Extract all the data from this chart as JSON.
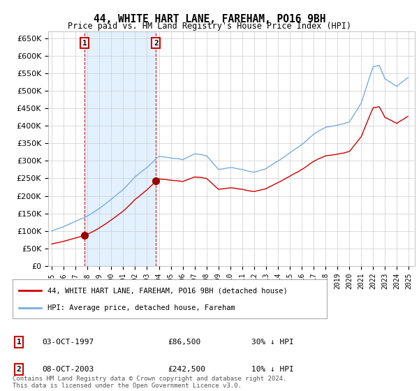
{
  "title": "44, WHITE HART LANE, FAREHAM, PO16 9BH",
  "subtitle": "Price paid vs. HM Land Registry's House Price Index (HPI)",
  "ylim": [
    0,
    670000
  ],
  "yticks": [
    0,
    50000,
    100000,
    150000,
    200000,
    250000,
    300000,
    350000,
    400000,
    450000,
    500000,
    550000,
    600000,
    650000
  ],
  "xlim_start": 1994.7,
  "xlim_end": 2025.5,
  "hpi_color": "#7aacdc",
  "hpi_fill_color": "#ddeeff",
  "price_color": "#cc0000",
  "marker_color": "#990000",
  "grid_color": "#cccccc",
  "background_color": "#ffffff",
  "legend_entry1": "44, WHITE HART LANE, FAREHAM, PO16 9BH (detached house)",
  "legend_entry2": "HPI: Average price, detached house, Fareham",
  "transaction1_date": "03-OCT-1997",
  "transaction1_price": "£86,500",
  "transaction1_hpi": "30% ↓ HPI",
  "transaction2_date": "08-OCT-2003",
  "transaction2_price": "£242,500",
  "transaction2_hpi": "10% ↓ HPI",
  "footer": "Contains HM Land Registry data © Crown copyright and database right 2024.\nThis data is licensed under the Open Government Licence v3.0.",
  "sale1_x": 1997.75,
  "sale1_y": 86500,
  "sale2_x": 2003.75,
  "sale2_y": 242500
}
